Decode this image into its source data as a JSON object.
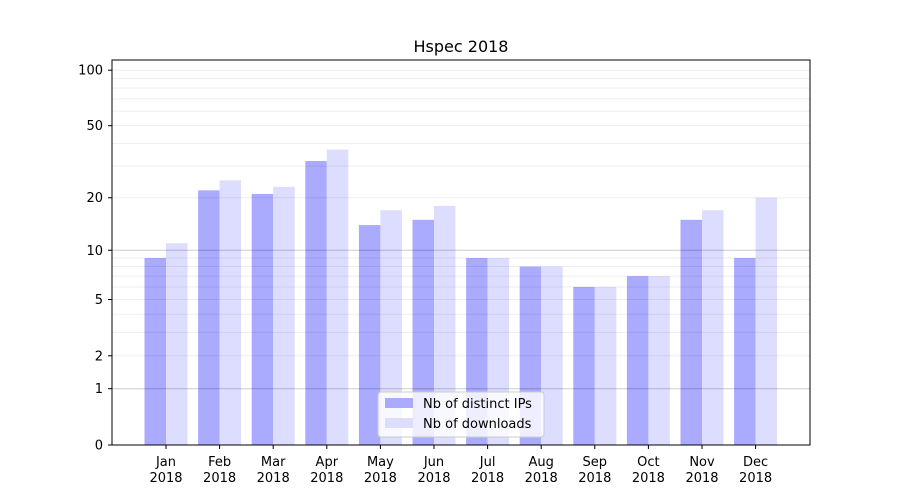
{
  "chart_data": {
    "type": "bar",
    "title": "Hspec 2018",
    "xlabel": "",
    "ylabel": "",
    "yscale": "log10(1+y)",
    "ylim": [
      0,
      110
    ],
    "yticks": [
      0,
      1,
      2,
      5,
      10,
      20,
      50,
      100
    ],
    "categories": [
      "Jan\n2018",
      "Feb\n2018",
      "Mar\n2018",
      "Apr\n2018",
      "May\n2018",
      "Jun\n2018",
      "Jul\n2018",
      "Aug\n2018",
      "Sep\n2018",
      "Oct\n2018",
      "Nov\n2018",
      "Dec\n2018"
    ],
    "series": [
      {
        "name": "Nb of distinct IPs",
        "color": "#aaaaff",
        "values": [
          9,
          22,
          21,
          32,
          14,
          15,
          9,
          8,
          6,
          7,
          15,
          9
        ]
      },
      {
        "name": "Nb of downloads",
        "color": "#ddddff",
        "values": [
          11,
          25,
          23,
          37,
          17,
          18,
          9,
          8,
          6,
          7,
          17,
          20
        ]
      }
    ],
    "grid": true,
    "legend_position": "lower-center"
  }
}
